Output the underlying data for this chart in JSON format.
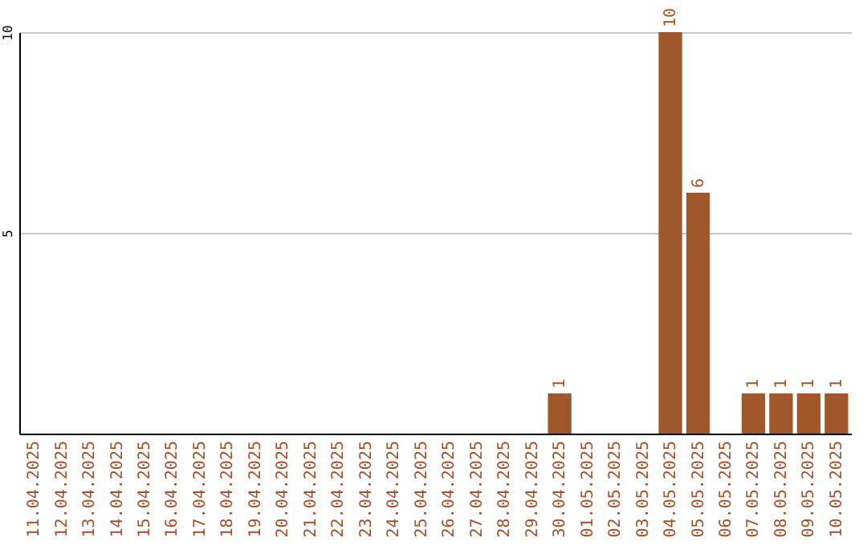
{
  "chart_data": {
    "type": "bar",
    "categories": [
      "11.04.2025",
      "12.04.2025",
      "13.04.2025",
      "14.04.2025",
      "15.04.2025",
      "16.04.2025",
      "17.04.2025",
      "18.04.2025",
      "19.04.2025",
      "20.04.2025",
      "21.04.2025",
      "22.04.2025",
      "23.04.2025",
      "24.04.2025",
      "25.04.2025",
      "26.04.2025",
      "27.04.2025",
      "28.04.2025",
      "29.04.2025",
      "30.04.2025",
      "01.05.2025",
      "02.05.2025",
      "03.05.2025",
      "04.05.2025",
      "05.05.2025",
      "06.05.2025",
      "07.05.2025",
      "08.05.2025",
      "09.05.2025",
      "10.05.2025"
    ],
    "values": [
      0,
      0,
      0,
      0,
      0,
      0,
      0,
      0,
      0,
      0,
      0,
      0,
      0,
      0,
      0,
      0,
      0,
      0,
      0,
      1,
      0,
      0,
      0,
      10,
      6,
      0,
      1,
      1,
      1,
      1
    ],
    "value_labels": [
      null,
      null,
      null,
      null,
      null,
      null,
      null,
      null,
      null,
      null,
      null,
      null,
      null,
      null,
      null,
      null,
      null,
      null,
      null,
      "1",
      null,
      null,
      null,
      "10",
      "6",
      null,
      "1",
      "1",
      "1",
      "1"
    ],
    "color": "#a0582a",
    "ylim": [
      0,
      10
    ],
    "yticks": [
      5,
      10
    ],
    "grid": "y"
  }
}
